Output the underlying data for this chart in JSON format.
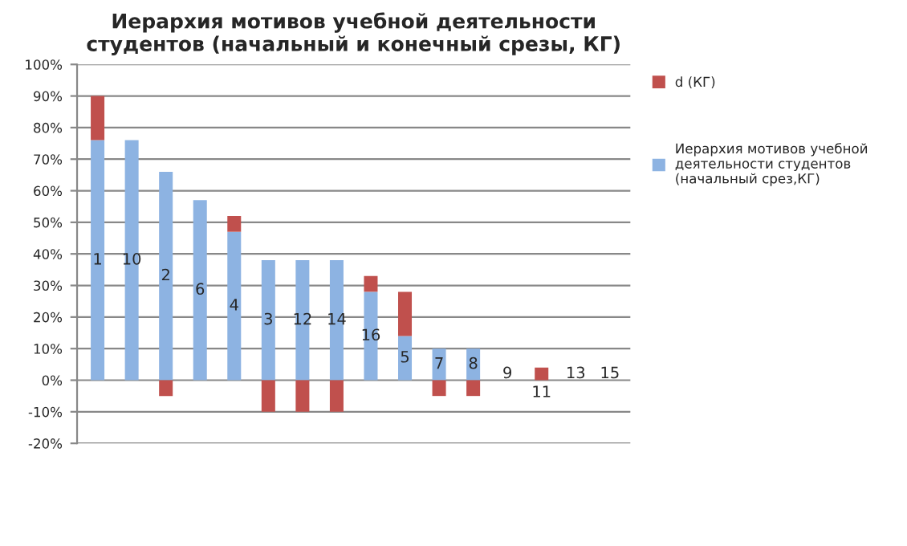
{
  "chart_data": {
    "type": "bar",
    "title": "Иерархия мотивов учебной деятельности\nстудентов (начальный и конечный срезы, КГ)",
    "categories": [
      "1",
      "10",
      "2",
      "6",
      "4",
      "3",
      "12",
      "14",
      "16",
      "5",
      "7",
      "8",
      "9",
      "11",
      "13",
      "15"
    ],
    "stacked": true,
    "series": [
      {
        "name": "Иерархия мотивов учебной деятельности студентов (начальный срез,КГ)",
        "color": "#8db3e2",
        "values": [
          76,
          76,
          66,
          57,
          47,
          38,
          38,
          38,
          28,
          14,
          10,
          10,
          0,
          0,
          0,
          0
        ]
      },
      {
        "name": "d (КГ)",
        "color": "#c0504d",
        "values": [
          14,
          0,
          -5,
          0,
          5,
          -10,
          -10,
          -10,
          5,
          14,
          -5,
          -5,
          0,
          4,
          0,
          0
        ]
      }
    ],
    "ylim": [
      -20,
      100
    ],
    "yticks": [
      {
        "value": -20,
        "label": "-20%"
      },
      {
        "value": -10,
        "label": "-10%"
      },
      {
        "value": 0,
        "label": "0%"
      },
      {
        "value": 10,
        "label": "10%"
      },
      {
        "value": 20,
        "label": "20%"
      },
      {
        "value": 30,
        "label": "30%"
      },
      {
        "value": 40,
        "label": "40%"
      },
      {
        "value": 50,
        "label": "50%"
      },
      {
        "value": 60,
        "label": "60%"
      },
      {
        "value": 70,
        "label": "70%"
      },
      {
        "value": 80,
        "label": "80%"
      },
      {
        "value": 90,
        "label": "90%"
      },
      {
        "value": 100,
        "label": "100%"
      }
    ],
    "grid": "y",
    "legend": "right",
    "tick_labels": "y"
  }
}
